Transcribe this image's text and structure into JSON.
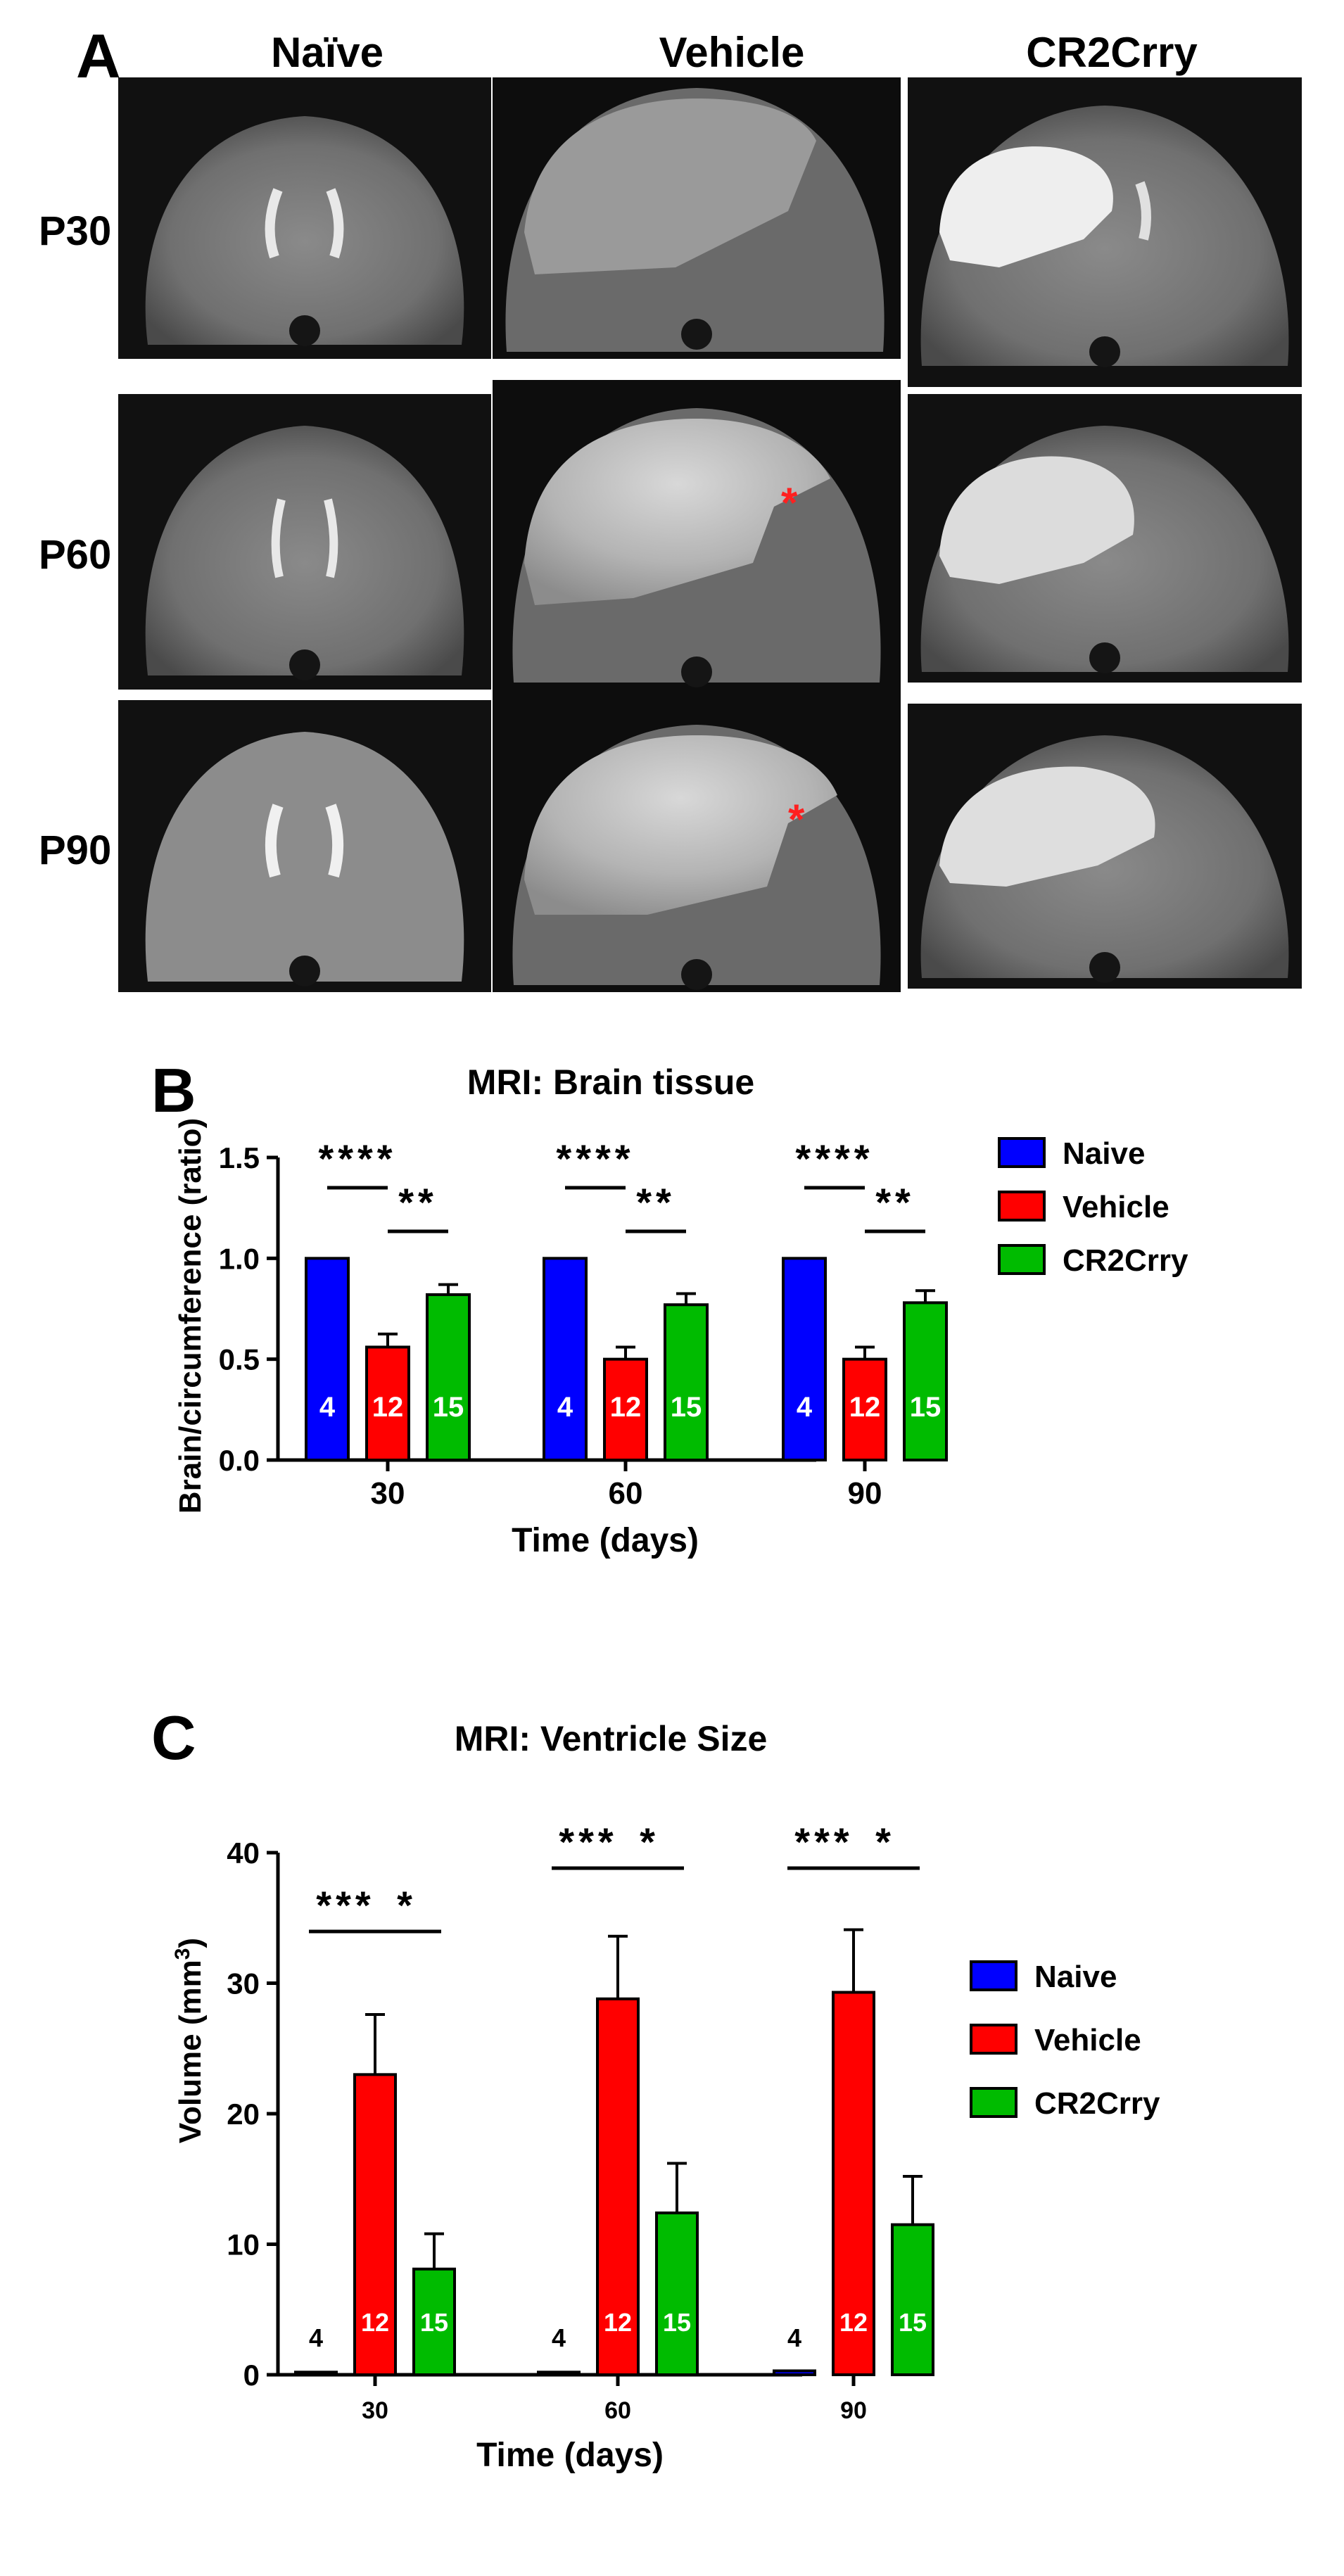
{
  "panel_a": {
    "letter": "A",
    "columns": [
      "Naïve",
      "Vehicle",
      "CR2Crry"
    ],
    "rows": [
      "P30",
      "P60",
      "P90"
    ],
    "asterisk": "*"
  },
  "colors": {
    "Naive": "#0000ff",
    "Vehicle": "#ff0000",
    "CR2Crry": "#00bb00",
    "asterisk": "#ff2020"
  },
  "chart_data": [
    {
      "panel": "B",
      "type": "bar",
      "title": "MRI: Brain tissue",
      "xlabel": "Time (days)",
      "ylabel": "Brain/circumference (ratio)",
      "ylim": [
        0,
        1.5
      ],
      "yticks": [
        "0.0",
        "0.5",
        "1.0",
        "1.5"
      ],
      "categories": [
        "30",
        "60",
        "90"
      ],
      "legend": "top-right",
      "series": [
        {
          "name": "Naive",
          "values": [
            1.0,
            1.0,
            1.0
          ],
          "errors": [
            0,
            0,
            0
          ],
          "n": "4"
        },
        {
          "name": "Vehicle",
          "values": [
            0.56,
            0.5,
            0.5
          ],
          "errors": [
            0.065,
            0.06,
            0.06
          ],
          "n": "12"
        },
        {
          "name": "CR2Crry",
          "values": [
            0.82,
            0.77,
            0.78
          ],
          "errors": [
            0.05,
            0.055,
            0.06
          ],
          "n": "15"
        }
      ],
      "significance": [
        "****",
        "**",
        "****",
        "**",
        "****",
        "**"
      ]
    },
    {
      "panel": "C",
      "type": "bar",
      "title": "MRI: Ventricle Size",
      "xlabel": "Time (days)",
      "ylabel": "Volume (mm",
      "ylabel_sup": "3",
      "ylabel_end": ")",
      "ylim": [
        0,
        40
      ],
      "yticks": [
        "0",
        "10",
        "20",
        "30",
        "40"
      ],
      "categories": [
        "30",
        "60",
        "90"
      ],
      "legend": "right",
      "series": [
        {
          "name": "Naive",
          "values": [
            0.2,
            0.2,
            0.3
          ],
          "errors": [
            0,
            0,
            0
          ],
          "n": "4"
        },
        {
          "name": "Vehicle",
          "values": [
            23.0,
            28.8,
            29.3
          ],
          "errors": [
            4.6,
            4.8,
            4.8
          ],
          "n": "12"
        },
        {
          "name": "CR2Crry",
          "values": [
            8.1,
            12.4,
            11.5
          ],
          "errors": [
            2.7,
            3.8,
            3.7
          ],
          "n": "15"
        }
      ],
      "significance": [
        "***",
        "*",
        "***",
        "*",
        "***",
        "*"
      ]
    }
  ]
}
